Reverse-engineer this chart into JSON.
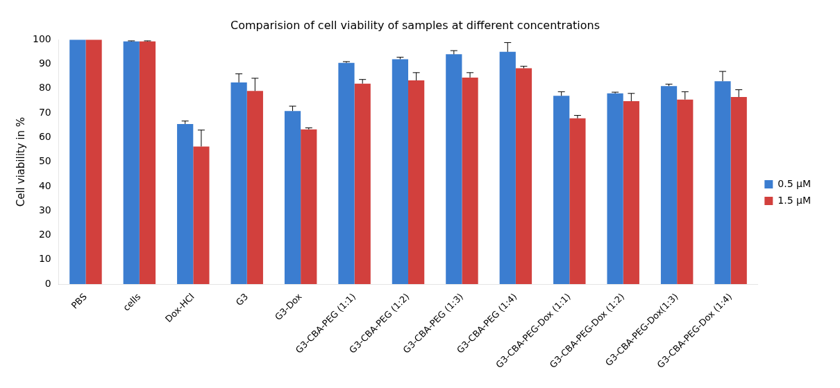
{
  "chart_data": {
    "type": "bar",
    "title": "Comparision of cell viability of samples at different concentrations",
    "ylabel": "Cell viability in %",
    "categories": [
      "PBS",
      "cells",
      "Dox-HCl",
      "G3",
      "G3-Dox",
      "G3-CBA-PEG (1:1)",
      "G3-CBA-PEG (1:2)",
      "G3-CBA-PEG (1:3)",
      "G3-CBA-PEG (1:4)",
      "G3-CBA-PEG-Dox (1:1)",
      "G3-CBA-PEG-Dox (1:2)",
      "G3-CBA-PEG-Dox(1:3)",
      "G3-CBA-PEG-Dox (1:4)"
    ],
    "series": [
      {
        "name": "0.5 µM",
        "color": "#3b7dd0",
        "values": [
          100,
          99.3,
          65.5,
          82.5,
          70.8,
          90.5,
          92,
          94,
          95,
          77,
          78,
          81,
          83
        ],
        "errors": [
          null,
          0.2,
          1.2,
          3.5,
          2,
          0.5,
          0.8,
          1.5,
          3.8,
          1.7,
          0.5,
          0.8,
          4
        ]
      },
      {
        "name": "1.5 µM",
        "color": "#d2403d",
        "values": [
          100,
          99.3,
          56.3,
          79,
          63.3,
          82,
          83.3,
          84.5,
          88.3,
          67.8,
          74.8,
          75.5,
          76.5
        ],
        "errors": [
          null,
          0.2,
          6.7,
          5.2,
          0.6,
          1.7,
          3.2,
          2,
          0.8,
          1.2,
          3.2,
          3.2,
          3
        ]
      }
    ],
    "ylim": [
      0,
      100
    ],
    "yticks": [
      0,
      10,
      20,
      30,
      40,
      50,
      60,
      70,
      80,
      90,
      100
    ],
    "grid": false,
    "legend": "right"
  }
}
